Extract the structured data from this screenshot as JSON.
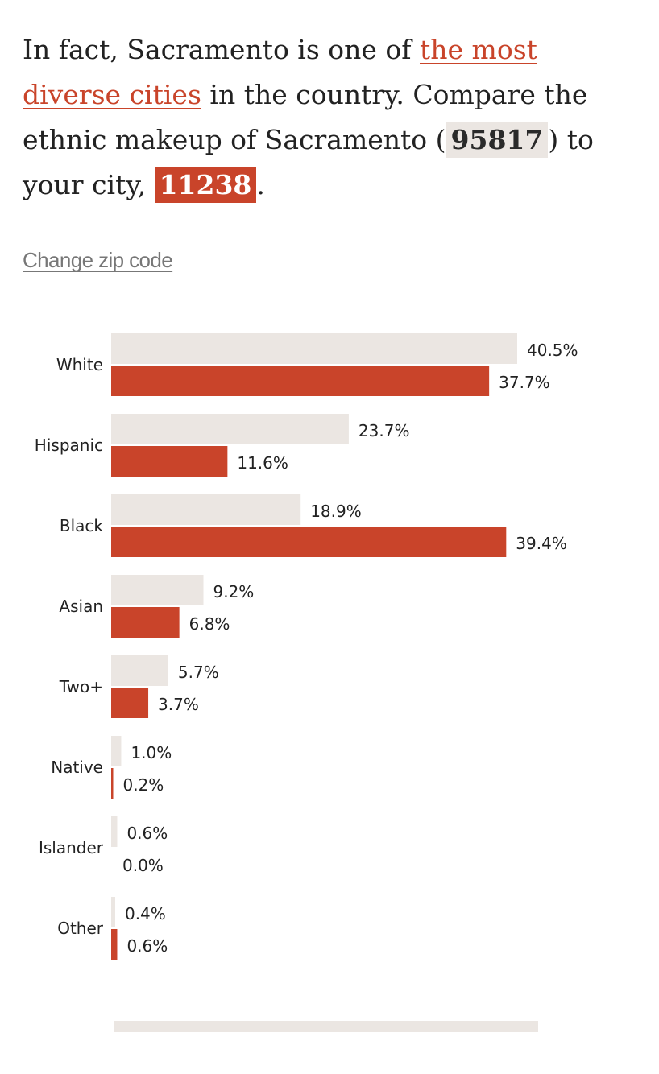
{
  "intro": {
    "text_before_link": "In fact, Sacramento is one of ",
    "link_text": "the most diverse cities",
    "text_after_link": " in the country. Compare the ethnic makeup of Sacramento (",
    "local_zip": "95817",
    "text_before_user_zip": ") to your city, ",
    "user_zip": "11238",
    "text_end": "."
  },
  "change_zip_label": "Change zip code",
  "colors": {
    "local": "#ebe6e2",
    "user": "#c9442a",
    "link": "#c9442a"
  },
  "chart_data": {
    "type": "bar",
    "orientation": "horizontal",
    "categories": [
      "White",
      "Hispanic",
      "Black",
      "Asian",
      "Two+",
      "Native",
      "Islander",
      "Other"
    ],
    "series": [
      {
        "values": [
          40.5,
          23.7,
          18.9,
          9.2,
          5.7,
          1.0,
          0.6,
          0.4
        ]
      },
      {
        "values": [
          37.7,
          11.6,
          39.4,
          6.8,
          3.7,
          0.2,
          0.0,
          0.6
        ]
      }
    ],
    "labels": [
      [
        "40.5%",
        "37.7%"
      ],
      [
        "23.7%",
        "11.6%"
      ],
      [
        "18.9%",
        "39.4%"
      ],
      [
        "9.2%",
        "6.8%"
      ],
      [
        "5.7%",
        "3.7%"
      ],
      [
        "1.0%",
        "0.2%"
      ],
      [
        "0.6%",
        "0.0%"
      ],
      [
        "0.4%",
        "0.6%"
      ]
    ],
    "xlim": [
      0,
      40.5
    ],
    "grid": false,
    "legend": "none"
  }
}
